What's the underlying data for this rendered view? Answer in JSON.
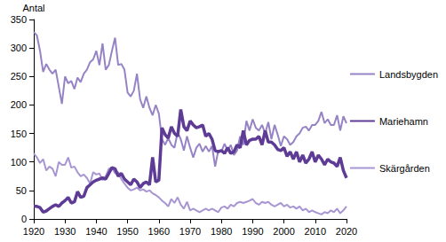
{
  "chart_data": {
    "type": "line",
    "y_label": "Antal",
    "x": [
      1920,
      1921,
      1922,
      1923,
      1924,
      1925,
      1926,
      1927,
      1928,
      1929,
      1930,
      1931,
      1932,
      1933,
      1934,
      1935,
      1936,
      1937,
      1938,
      1939,
      1940,
      1941,
      1942,
      1943,
      1944,
      1945,
      1946,
      1947,
      1948,
      1949,
      1950,
      1951,
      1952,
      1953,
      1954,
      1955,
      1956,
      1957,
      1958,
      1959,
      1960,
      1961,
      1962,
      1963,
      1964,
      1965,
      1966,
      1967,
      1968,
      1969,
      1970,
      1971,
      1972,
      1973,
      1974,
      1975,
      1976,
      1977,
      1978,
      1979,
      1980,
      1981,
      1982,
      1983,
      1984,
      1985,
      1986,
      1987,
      1988,
      1989,
      1990,
      1991,
      1992,
      1993,
      1994,
      1995,
      1996,
      1997,
      1998,
      1999,
      2000,
      2001,
      2002,
      2003,
      2004,
      2005,
      2006,
      2007,
      2008,
      2009,
      2010,
      2011,
      2012,
      2013,
      2014,
      2015,
      2016,
      2017,
      2018,
      2019,
      2020
    ],
    "series": [
      {
        "name": "Landsbygden",
        "color": "#9683c6",
        "values": [
          328,
          322,
          295,
          258,
          272,
          262,
          255,
          262,
          232,
          202,
          250,
          238,
          242,
          228,
          248,
          240,
          255,
          262,
          275,
          280,
          295,
          270,
          308,
          262,
          270,
          295,
          318,
          270,
          272,
          262,
          222,
          215,
          225,
          255,
          210,
          195,
          215,
          195,
          182,
          200,
          185,
          140,
          130,
          142,
          130,
          125,
          152,
          140,
          120,
          145,
          125,
          108,
          125,
          132,
          118,
          128,
          118,
          128,
          92,
          120,
          118,
          132,
          120,
          130,
          112,
          120,
          145,
          130,
          172,
          155,
          175,
          160,
          155,
          165,
          150,
          170,
          140,
          165,
          148,
          128,
          145,
          140,
          130,
          135,
          145,
          150,
          160,
          162,
          155,
          165,
          165,
          172,
          188,
          168,
          175,
          165,
          165,
          182,
          155,
          180,
          168
        ]
      },
      {
        "name": "Mariehamn",
        "color": "#5e3b94",
        "values": [
          22,
          22,
          20,
          12,
          14,
          18,
          22,
          25,
          22,
          28,
          32,
          38,
          28,
          30,
          48,
          38,
          40,
          55,
          60,
          65,
          68,
          70,
          72,
          70,
          80,
          90,
          88,
          75,
          80,
          70,
          65,
          60,
          70,
          65,
          55,
          62,
          65,
          60,
          108,
          65,
          68,
          160,
          148,
          142,
          162,
          150,
          145,
          192,
          162,
          155,
          172,
          165,
          160,
          162,
          165,
          145,
          150,
          140,
          120,
          118,
          120,
          115,
          125,
          115,
          118,
          130,
          125,
          155,
          130,
          138,
          140,
          140,
          145,
          130,
          155,
          135,
          135,
          130,
          122,
          120,
          125,
          110,
          118,
          105,
          118,
          100,
          112,
          98,
          105,
          118,
          100,
          112,
          105,
          95,
          105,
          100,
          98,
          92,
          108,
          85,
          72
        ]
      },
      {
        "name": "Skärgården",
        "color": "#a796d2",
        "values": [
          115,
          108,
          98,
          105,
          85,
          92,
          88,
          75,
          100,
          95,
          95,
          108,
          90,
          92,
          82,
          75,
          78,
          72,
          62,
          82,
          78,
          80,
          68,
          75,
          88,
          90,
          80,
          82,
          70,
          62,
          55,
          50,
          52,
          55,
          50,
          52,
          48,
          50,
          45,
          42,
          38,
          32,
          28,
          22,
          35,
          28,
          38,
          25,
          18,
          30,
          15,
          18,
          15,
          12,
          15,
          18,
          15,
          18,
          15,
          12,
          20,
          22,
          18,
          25,
          22,
          28,
          30,
          28,
          30,
          32,
          35,
          28,
          25,
          30,
          28,
          30,
          25,
          22,
          25,
          28,
          22,
          25,
          20,
          22,
          18,
          22,
          15,
          18,
          12,
          15,
          12,
          10,
          8,
          12,
          10,
          15,
          12,
          18,
          10,
          15,
          22
        ]
      }
    ],
    "xlim": [
      1920,
      2020
    ],
    "xticks": [
      1920,
      1930,
      1940,
      1950,
      1960,
      1970,
      1980,
      1990,
      2000,
      2010,
      2020
    ],
    "ylim": [
      0,
      350
    ],
    "yticks": [
      0,
      50,
      100,
      150,
      200,
      250,
      300,
      350
    ],
    "grid": false,
    "legend": "right"
  }
}
